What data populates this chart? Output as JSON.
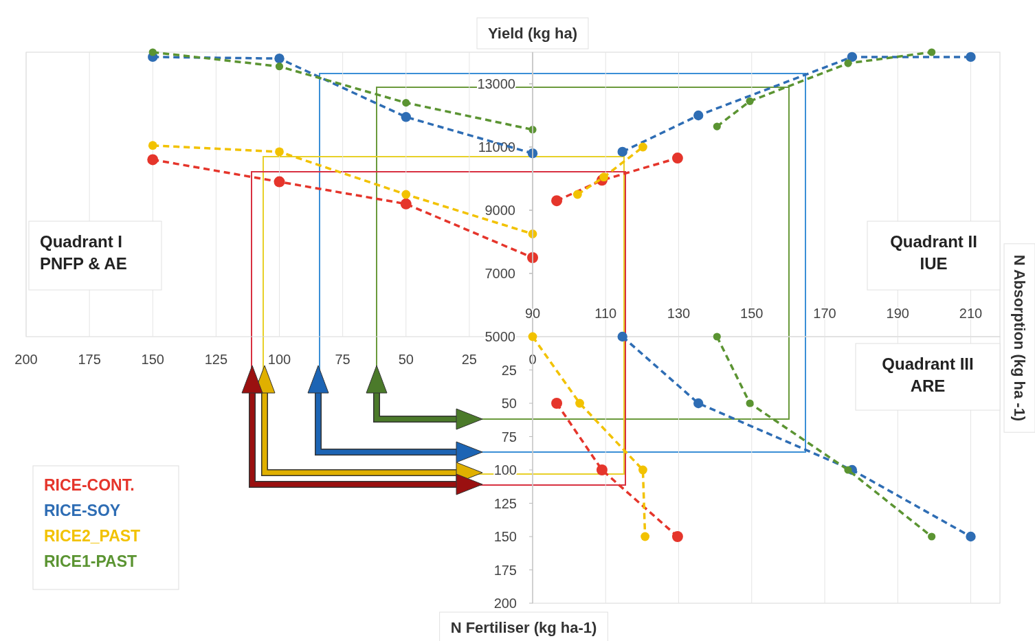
{
  "chart_data": [
    {
      "type": "line",
      "ylabel": "Yield (kg ha)",
      "xlim": [
        200,
        0
      ],
      "ylim": [
        5000,
        14000
      ],
      "xticks": [
        200,
        175,
        150,
        125,
        100,
        75,
        50,
        25,
        0
      ],
      "yticks": [
        5000,
        7000,
        9000,
        11000,
        13000
      ],
      "grid": "x",
      "marker": "circle",
      "line_style": "dashed",
      "legend": "bottom left",
      "annotations": [
        "Quadrant I\nPNFP & AE"
      ],
      "series": [
        {
          "name": "RICE-CONT.",
          "color": "#e5352b",
          "x": [
            150,
            100,
            50,
            0
          ],
          "values": [
            10600,
            9900,
            9200,
            7500
          ]
        },
        {
          "name": "RICE-SOY",
          "color": "#2e6db4",
          "x": [
            150,
            100,
            50,
            0
          ],
          "values": [
            13850,
            13800,
            11950,
            10800
          ]
        },
        {
          "name": "RICE2_PAST",
          "color": "#f2c200",
          "x": [
            150,
            100,
            50,
            0
          ],
          "values": [
            11050,
            10850,
            9500,
            8250
          ]
        },
        {
          "name": "RICE1-PAST",
          "color": "#5b9432",
          "x": [
            150,
            100,
            50,
            0
          ],
          "values": [
            14000,
            13550,
            12400,
            11550
          ]
        }
      ]
    },
    {
      "type": "line",
      "xlim": [
        90,
        218
      ],
      "ylim": [
        5000,
        14000
      ],
      "xticks": [
        90,
        110,
        130,
        150,
        170,
        190,
        210
      ],
      "yticks": [
        5000,
        7000,
        9000,
        11000,
        13000
      ],
      "tick_labels": "x",
      "grid": "x",
      "marker": "circle",
      "line_style": "dashed",
      "annotations": [
        "Quadrant II\nIUE",
        "N Absorption (kg ha -1)"
      ],
      "series": [
        {
          "color": "#e5352b",
          "x": [
            96.6,
            109,
            129.7
          ],
          "values": [
            9300,
            9950,
            10650
          ]
        },
        {
          "color": "#2e6db4",
          "x": [
            114.6,
            135.4,
            177.5,
            210
          ],
          "values": [
            10850,
            12000,
            13850,
            13850
          ]
        },
        {
          "color": "#f2c200",
          "x": [
            102.3,
            109.5,
            120.2
          ],
          "values": [
            9500,
            10050,
            11000
          ]
        },
        {
          "color": "#5b9432",
          "x": [
            140.5,
            149.5,
            176.4,
            199.3
          ],
          "values": [
            11650,
            12450,
            13650,
            14000
          ]
        }
      ]
    },
    {
      "type": "line",
      "ylabel": "N Fertiliser (kg ha-1)",
      "xlim": [
        90,
        218
      ],
      "ylim": [
        200,
        0
      ],
      "xticks": [
        90,
        110,
        130,
        150,
        170,
        190,
        210
      ],
      "yticks": [
        25,
        50,
        75,
        100,
        125,
        150,
        175,
        200
      ],
      "tick_labels": "y",
      "grid": "x",
      "marker": "circle",
      "line_style": "dashed",
      "annotations": [
        "Quadrant III\nARE"
      ],
      "series": [
        {
          "color": "#e5352b",
          "x": [
            96.6,
            109,
            129.7
          ],
          "values": [
            50,
            100,
            150
          ]
        },
        {
          "color": "#2e6db4",
          "x": [
            114.6,
            135.4,
            177.5,
            210
          ],
          "values": [
            0,
            50,
            100,
            150
          ]
        },
        {
          "color": "#f2c200",
          "x": [
            90,
            102.9,
            120.2,
            120.8
          ],
          "values": [
            0,
            50,
            100,
            150
          ]
        },
        {
          "color": "#5b9432",
          "x": [
            140.5,
            149.5,
            176.4,
            199.3
          ],
          "values": [
            0,
            50,
            100,
            150
          ]
        }
      ]
    }
  ]
}
